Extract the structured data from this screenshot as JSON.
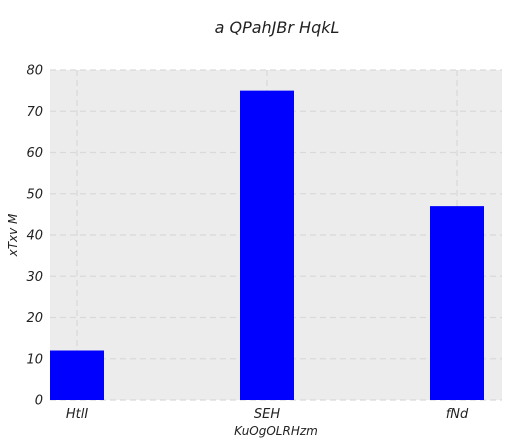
{
  "chart_data": {
    "type": "bar",
    "title": "a QPahJBr HqkL",
    "xlabel": "KuOgOLRHzm",
    "ylabel": "xTxv M",
    "categories": [
      "HtlI",
      "SEH",
      "fNd"
    ],
    "values": [
      12,
      75,
      47
    ],
    "ylim": [
      0,
      80
    ],
    "yticks": [
      0,
      10,
      20,
      30,
      40,
      50,
      60,
      70,
      80
    ],
    "bar_color": "#0000ff",
    "plot_background": "#ececec",
    "grid": true
  }
}
